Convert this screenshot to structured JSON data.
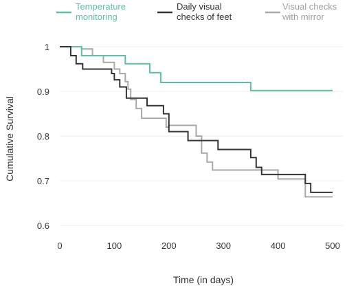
{
  "chart_data": {
    "type": "line",
    "title": "",
    "xlabel": "Time (in days)",
    "ylabel": "Cumulative Survival",
    "xlim": [
      0,
      500
    ],
    "ylim": [
      0.6,
      1.0
    ],
    "x_ticks": [
      "0",
      "100",
      "200",
      "300",
      "400",
      "500"
    ],
    "y_ticks": [
      "0.6",
      "0.7",
      "0.8",
      "0.9",
      "1"
    ],
    "x_tick_values": [
      0,
      100,
      200,
      300,
      400,
      500
    ],
    "y_tick_values": [
      0.6,
      0.7,
      0.8,
      0.9,
      1.0
    ],
    "grid": "horizontal",
    "legend_position": "top",
    "line_style": "step",
    "series": [
      {
        "name": "Temperature monitoring",
        "legend_lines": [
          "Temperature",
          "monitoring"
        ],
        "color": "#5cbfa6",
        "legend_text_color": "#5cbfa6",
        "x": [
          0,
          40,
          80,
          115,
          120,
          150,
          165,
          175,
          185,
          200,
          350,
          355,
          500
        ],
        "y": [
          1.0,
          0.98,
          0.98,
          0.98,
          0.962,
          0.962,
          0.942,
          0.942,
          0.92,
          0.92,
          0.902,
          0.902,
          0.902
        ]
      },
      {
        "name": "Daily visual checks of feet",
        "legend_lines": [
          "Daily visual",
          "checks of feet"
        ],
        "color": "#333333",
        "legend_text_color": "#333333",
        "x": [
          0,
          20,
          30,
          42,
          50,
          80,
          95,
          100,
          110,
          115,
          122,
          142,
          145,
          160,
          180,
          190,
          200,
          235,
          280,
          290,
          345,
          350,
          360,
          370,
          390,
          440,
          450,
          460,
          500
        ],
        "y": [
          1.0,
          0.98,
          0.962,
          0.95,
          0.95,
          0.95,
          0.94,
          0.926,
          0.91,
          0.91,
          0.885,
          0.885,
          0.885,
          0.868,
          0.868,
          0.85,
          0.81,
          0.79,
          0.79,
          0.77,
          0.77,
          0.752,
          0.73,
          0.714,
          0.714,
          0.714,
          0.694,
          0.674,
          0.674
        ]
      },
      {
        "name": "Visual checks with mirror",
        "legend_lines": [
          "Visual checks",
          "with mirror"
        ],
        "color": "#a8a8a8",
        "legend_text_color": "#a0a0a0",
        "x": [
          0,
          40,
          60,
          80,
          100,
          102,
          110,
          120,
          125,
          130,
          140,
          150,
          185,
          195,
          200,
          240,
          250,
          260,
          270,
          280,
          290,
          300,
          380,
          400,
          440,
          450,
          500
        ],
        "y": [
          1.0,
          0.995,
          0.98,
          0.965,
          0.95,
          0.95,
          0.94,
          0.922,
          0.905,
          0.882,
          0.862,
          0.84,
          0.84,
          0.82,
          0.824,
          0.824,
          0.8,
          0.762,
          0.742,
          0.724,
          0.724,
          0.724,
          0.724,
          0.704,
          0.704,
          0.664,
          0.664
        ]
      }
    ]
  }
}
